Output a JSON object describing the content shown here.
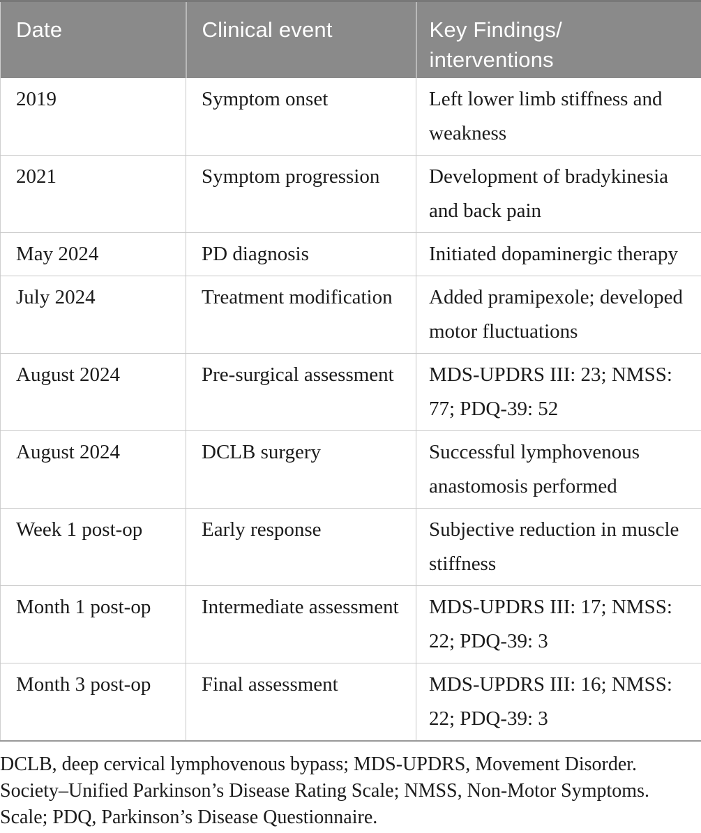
{
  "table": {
    "title_semantic": "clinical-timeline-table",
    "columns": {
      "date": "Date",
      "event": "Clinical event",
      "findings": "Key Findings/\ninterventions"
    },
    "rows": [
      {
        "date": "2019",
        "event": "Symptom onset",
        "findings": "Left lower limb stiffness and weakness"
      },
      {
        "date": "2021",
        "event": "Symptom progression",
        "findings": "Development of bradykinesia and back pain"
      },
      {
        "date": "May 2024",
        "event": "PD diagnosis",
        "findings": "Initiated dopaminergic therapy"
      },
      {
        "date": "July 2024",
        "event": "Treatment modification",
        "findings": "Added pramipexole; developed motor fluctuations"
      },
      {
        "date": "August 2024",
        "event": "Pre-surgical assessment",
        "findings": "MDS-UPDRS III: 23; NMSS: 77; PDQ-39: 52"
      },
      {
        "date": "August 2024",
        "event": "DCLB surgery",
        "findings": "Successful lymphovenous anastomosis performed"
      },
      {
        "date": "Week 1 post-op",
        "event": "Early response",
        "findings": "Subjective reduction in muscle stiffness"
      },
      {
        "date": "Month 1 post-op",
        "event": "Intermediate assessment",
        "findings": "MDS-UPDRS III: 17; NMSS: 22; PDQ-39: 3"
      },
      {
        "date": "Month 3 post-op",
        "event": "Final assessment",
        "findings": "MDS-UPDRS III: 16; NMSS: 22; PDQ-39: 3"
      }
    ],
    "footnote": "DCLB, deep cervical lymphovenous bypass; MDS-UPDRS, Movement Disorder. Society–Unified Parkinson’s Disease Rating Scale; NMSS, Non-Motor Symptoms. Scale; PDQ, Parkinson’s Disease Questionnaire.",
    "colors": {
      "header_bg": "#8a8a8a",
      "header_text": "#ffffff",
      "header_divider": "#b9b9b9",
      "body_text": "#1b1b1b",
      "grid_line": "#c8c8c8",
      "table_bottom_border": "#989898"
    }
  }
}
